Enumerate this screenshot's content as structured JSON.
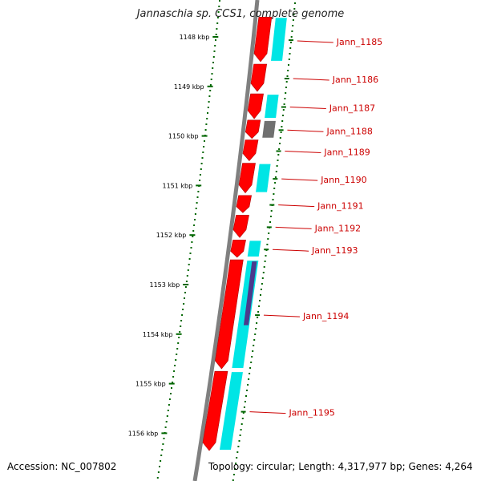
{
  "title": "Jannaschia sp. CCS1, complete genome",
  "footer": {
    "accession": "Accession: NC_007802",
    "summary": "Topology: circular; Length: 4,317,977 bp; Genes: 4,264"
  },
  "ticks": [
    {
      "label": "1148 kbp",
      "kbp": 1148
    },
    {
      "label": "1149 kbp",
      "kbp": 1149
    },
    {
      "label": "1150 kbp",
      "kbp": 1150
    },
    {
      "label": "1151 kbp",
      "kbp": 1151
    },
    {
      "label": "1152 kbp",
      "kbp": 1152
    },
    {
      "label": "1153 kbp",
      "kbp": 1153
    },
    {
      "label": "1154 kbp",
      "kbp": 1154
    },
    {
      "label": "1155 kbp",
      "kbp": 1155
    },
    {
      "label": "1156 kbp",
      "kbp": 1156
    }
  ],
  "genes": [
    {
      "label": "Jann_1185",
      "start_kbp": 1147.6,
      "end_kbp": 1148.5,
      "cyan": true
    },
    {
      "label": "Jann_1186",
      "start_kbp": 1148.55,
      "end_kbp": 1149.1,
      "cyan": false
    },
    {
      "label": "Jann_1187",
      "start_kbp": 1149.15,
      "end_kbp": 1149.65,
      "cyan": true
    },
    {
      "label": "Jann_1188",
      "start_kbp": 1149.68,
      "end_kbp": 1150.05,
      "cyan": false,
      "gray": true
    },
    {
      "label": "Jann_1189",
      "start_kbp": 1150.08,
      "end_kbp": 1150.5,
      "cyan": false
    },
    {
      "label": "Jann_1190",
      "start_kbp": 1150.55,
      "end_kbp": 1151.15,
      "cyan": true
    },
    {
      "label": "Jann_1191",
      "start_kbp": 1151.2,
      "end_kbp": 1151.55,
      "cyan": false
    },
    {
      "label": "Jann_1192",
      "start_kbp": 1151.6,
      "end_kbp": 1152.05,
      "cyan": false
    },
    {
      "label": "Jann_1193",
      "start_kbp": 1152.1,
      "end_kbp": 1152.45,
      "cyan": true
    },
    {
      "label": "Jann_1194",
      "start_kbp": 1152.5,
      "end_kbp": 1154.7,
      "cyan": true,
      "navy": true
    },
    {
      "label": "Jann_1195",
      "start_kbp": 1154.75,
      "end_kbp": 1156.35,
      "cyan": true
    }
  ],
  "colors": {
    "gene_forward": "#ff0000",
    "cds": "#00e5e5",
    "rna": "#4b3a8c",
    "other": "#707070",
    "backbone": "#808080",
    "tick": "#006600",
    "label": "#cc0000"
  }
}
